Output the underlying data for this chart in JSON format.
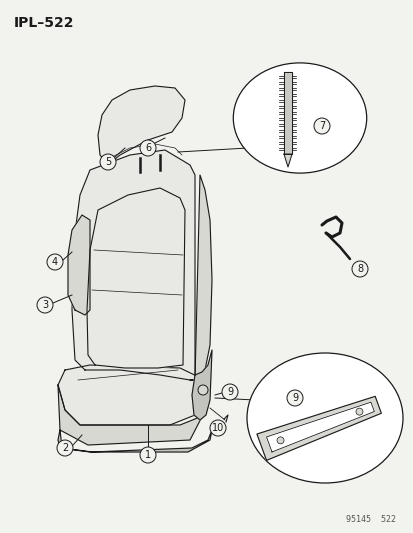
{
  "title": "IPL–522",
  "watermark": "95145  522",
  "bg_color": "#f2f2ee",
  "line_color": "#1a1a1a",
  "fill_light": "#e8e8e4",
  "fill_mid": "#d8d8d2",
  "fill_dark": "#c4c4be",
  "white": "#ffffff",
  "fig_width": 4.14,
  "fig_height": 5.33,
  "dpi": 100
}
